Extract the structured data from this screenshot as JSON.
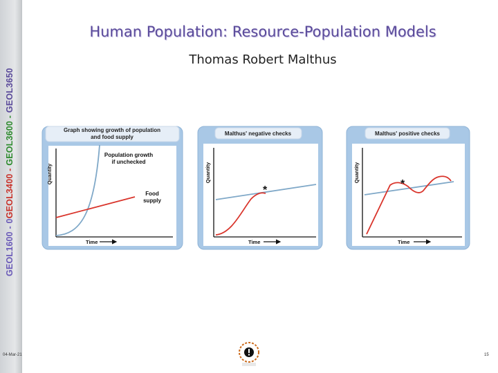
{
  "sidebar": {
    "part1": "GEOL1600 - 0",
    "part2": "GEOL3400 - ",
    "part3": "GEOL3600 - ",
    "part4": "GEOL3650"
  },
  "title": "Human Population: Resource-Population Models",
  "subtitle": "Thomas Robert Malthus",
  "panels": [
    {
      "header_line1": "Graph showing growth of population",
      "header_line2": "and food supply",
      "y_label": "Quantity",
      "x_label": "Time",
      "annotation1_line1": "Population growth",
      "annotation1_line2": "if unchecked",
      "annotation2_line1": "Food",
      "annotation2_line2": "supply"
    },
    {
      "header_line1": "Malthus' negative checks",
      "y_label": "Quantity",
      "x_label": "Time",
      "star": "*"
    },
    {
      "header_line1": "Malthus' positive checks",
      "y_label": "Quantity",
      "x_label": "Time",
      "star": "*"
    }
  ],
  "footer": {
    "date": "04-Mar-21",
    "page_number": "15"
  },
  "colors": {
    "panel_bg": "#a9c8e6",
    "plot_bg": "#ffffff",
    "population_curve": "#7fa8c8",
    "food_supply_line": "#d9342b",
    "title": "#5a4a9a"
  }
}
